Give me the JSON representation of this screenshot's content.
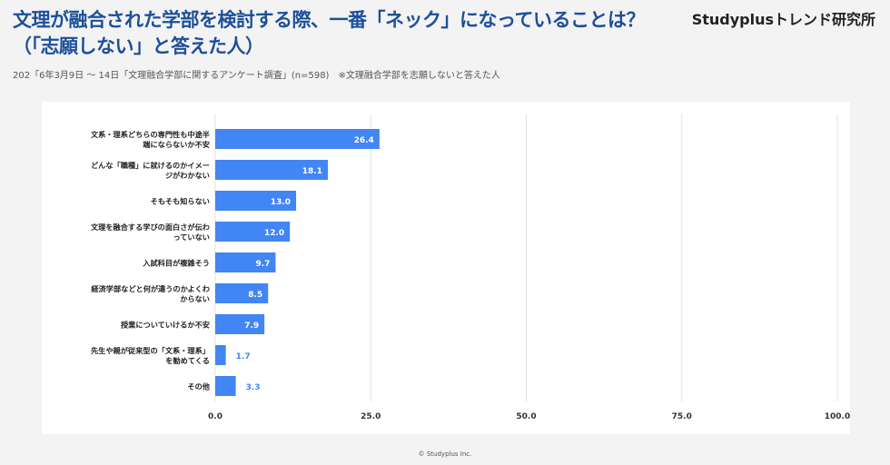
{
  "header": {
    "title": "文理が融合された学部を検討する際、一番「ネック」になっていることは？（「志願しない」と答えた人）",
    "brand": "Studyplusトレンド研究所",
    "subtitle": "202「6年3月9日 〜 14日「文理融合学部に関するアンケート調査」(n=598)　※文理融合学部を志願しないと答えた人"
  },
  "footer": {
    "copyright": "© Studyplus Inc."
  },
  "colors": {
    "bar": "#4285f4",
    "grid": "#e0e0e0",
    "label_inside": "#ffffff",
    "label_outside": "#4285f4"
  },
  "chart_data": {
    "type": "bar",
    "orientation": "horizontal",
    "categories": [
      [
        "文系・理系どちらの専門性も中途半",
        "端にならないか不安"
      ],
      [
        "どんな「職種」に就けるのかイメー",
        "ジがわかない"
      ],
      [
        "そもそも知らない"
      ],
      [
        "文理を融合する学びの面白さが伝わ",
        "っていない"
      ],
      [
        "入試科目が複雑そう"
      ],
      [
        "経済学部などと何が違うのかよくわ",
        "からない"
      ],
      [
        "授業についていけるか不安"
      ],
      [
        "先生や親が従来型の「文系・理系」",
        "を勧めてくる"
      ],
      [
        "その他"
      ]
    ],
    "values": [
      26.4,
      18.1,
      13.0,
      12.0,
      9.7,
      8.5,
      7.9,
      1.7,
      3.3
    ],
    "value_labels": [
      "26.4",
      "18.1",
      "13.0",
      "12.0",
      "9.7",
      "8.5",
      "7.9",
      "1.7",
      "3.3"
    ],
    "xlim": [
      0,
      100
    ],
    "ticks": [
      0,
      25,
      50,
      75,
      100
    ],
    "tick_labels": [
      "0.0",
      "25.0",
      "50.0",
      "75.0",
      "100.0"
    ],
    "grid": true
  }
}
